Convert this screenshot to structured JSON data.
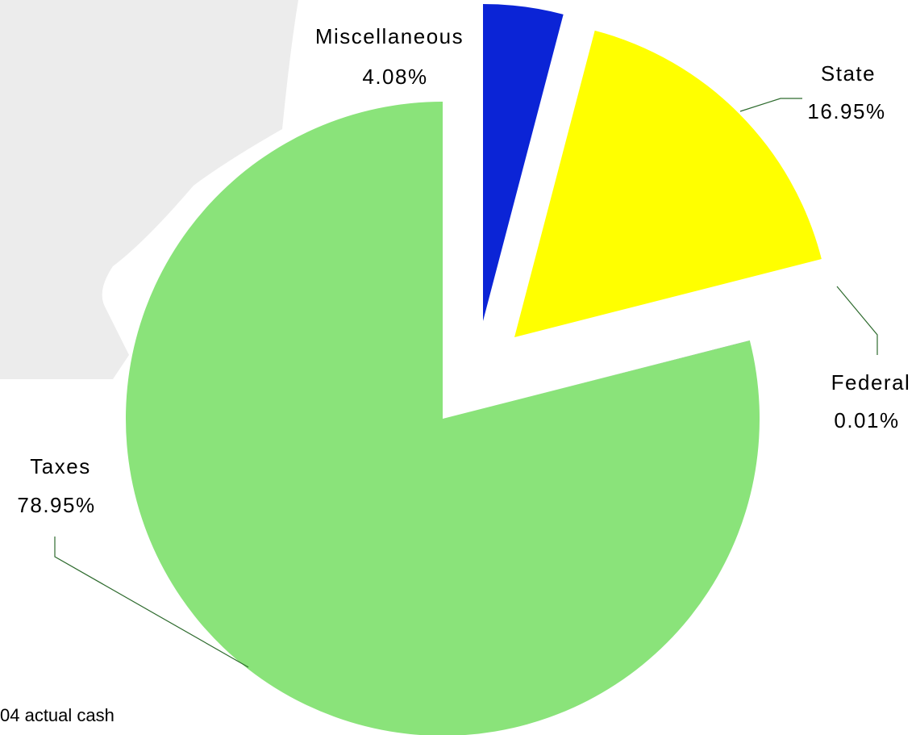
{
  "chart_data": {
    "type": "pie",
    "categories": [
      "Miscellaneous",
      "State",
      "Federal",
      "Taxes"
    ],
    "values": [
      4.08,
      16.95,
      0.01,
      78.95
    ],
    "value_labels": [
      "4.08%",
      "16.95%",
      "0.01%",
      "78.95%"
    ],
    "colors": [
      "#0b24d6",
      "#ffff00",
      "#3c8c3c",
      "#8ae37a"
    ],
    "note": "04 actual cash"
  }
}
